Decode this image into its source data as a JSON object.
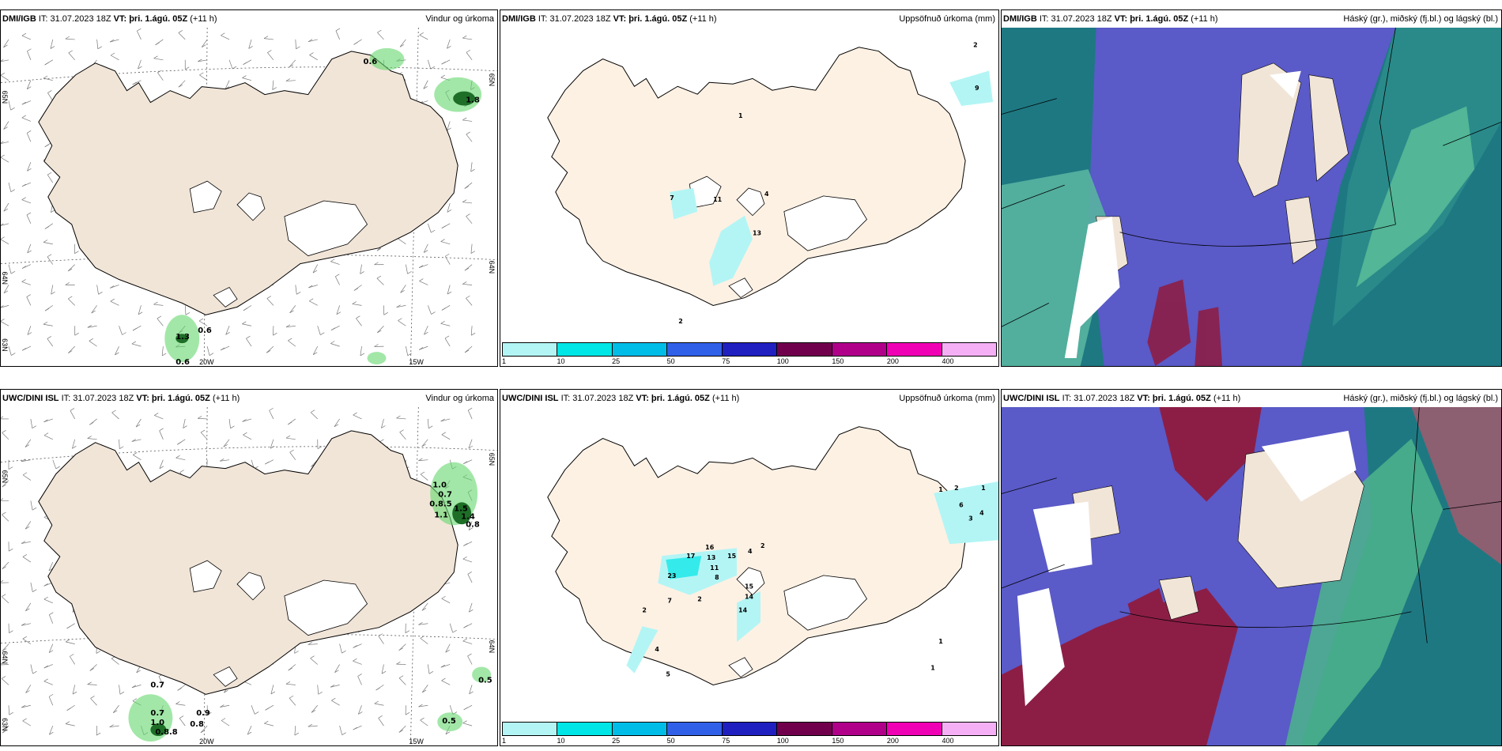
{
  "rows": [
    {
      "panels": [
        {
          "model": "DMI/IGB",
          "it": "IT: 31.07.2023 18Z",
          "vt": "VT: þri. 1.ágú. 05Z",
          "lead": "(+11 h)",
          "title": "Vindur og úrkoma",
          "labels": [
            "0.6",
            "1.8",
            "1.3",
            "0.6",
            "0.6"
          ],
          "axis": {
            "lat_left_top": "65N",
            "lat_left_mid": "64N",
            "lat_left_bot": "63N",
            "lat_right_top": "65N",
            "lat_right_mid": "64N",
            "lon_a": "20W",
            "lon_b": "15W"
          }
        },
        {
          "model": "DMI/IGB",
          "it": "IT: 31.07.2023 18Z",
          "vt": "VT: þri. 1.ágú. 05Z",
          "lead": "(+11 h)",
          "title": "Uppsöfnuð úrkoma (mm)",
          "labels": [
            "2",
            "9",
            "1",
            "7",
            "11",
            "4",
            "13",
            "2"
          ]
        },
        {
          "model": "DMI/IGB",
          "it": "IT: 31.07.2023 18Z",
          "vt": "VT: þri. 1.ágú. 05Z",
          "lead": "(+11 h)",
          "title": "Háský (gr.), miðský (fj.bl.) og lágský (bl.)"
        }
      ]
    },
    {
      "panels": [
        {
          "model": "UWC/DINI ISL",
          "it": "IT: 31.07.2023 18Z",
          "vt": "VT: þri. 1.ágú. 05Z",
          "lead": "(+11 h)",
          "title": "Vindur og úrkoma",
          "labels": [
            "1.0",
            "0.7",
            "0.8.5",
            "1.1",
            "1.5",
            "1.4",
            "0.8",
            "0.7",
            "0.7",
            "1.0",
            "0.8.8",
            "0.9",
            "0.8",
            "0.5",
            "0.5"
          ],
          "axis": {
            "lat_left_top": "65N",
            "lat_left_mid": "64N",
            "lat_left_bot": "63N",
            "lat_right_top": "65N",
            "lat_right_mid": "64N",
            "lon_a": "20W",
            "lon_b": "15W"
          }
        },
        {
          "model": "UWC/DINI ISL",
          "it": "IT: 31.07.2023 18Z",
          "vt": "VT: þri. 1.ágú. 05Z",
          "lead": "(+11 h)",
          "title": "Uppsöfnuð úrkoma (mm)",
          "labels": [
            "1",
            "2",
            "1",
            "6",
            "4",
            "3",
            "2",
            "4",
            "16",
            "13",
            "17",
            "15",
            "11",
            "8",
            "23",
            "15",
            "14",
            "14",
            "7",
            "2",
            "2",
            "4",
            "5",
            "1",
            "1"
          ]
        },
        {
          "model": "UWC/DINI ISL",
          "it": "IT: 31.07.2023 18Z",
          "vt": "VT: þri. 1.ágú. 05Z",
          "lead": "(+11 h)",
          "title": "Háský (gr.), miðský (fj.bl.) og lágský (bl.)"
        }
      ]
    }
  ],
  "colorbar": {
    "ticks": [
      "1",
      "10",
      "25",
      "50",
      "75",
      "100",
      "150",
      "200",
      "400"
    ],
    "colors": [
      "#b3f5f5",
      "#00e5e5",
      "#00bde8",
      "#3060e8",
      "#2020c0",
      "#70004c",
      "#b0008a",
      "#f000b4",
      "#f5b0f5"
    ]
  },
  "colors": {
    "land": "#f1e5d8",
    "land_rain": "#fdf1e4",
    "glacier": "#ffffff",
    "rain_green": "#64d76c",
    "rain_dark": "#1e6e28",
    "cloud_low": "#5a5ac8",
    "cloud_mid": "#1e7882",
    "cloud_high": "#8c1e46"
  }
}
